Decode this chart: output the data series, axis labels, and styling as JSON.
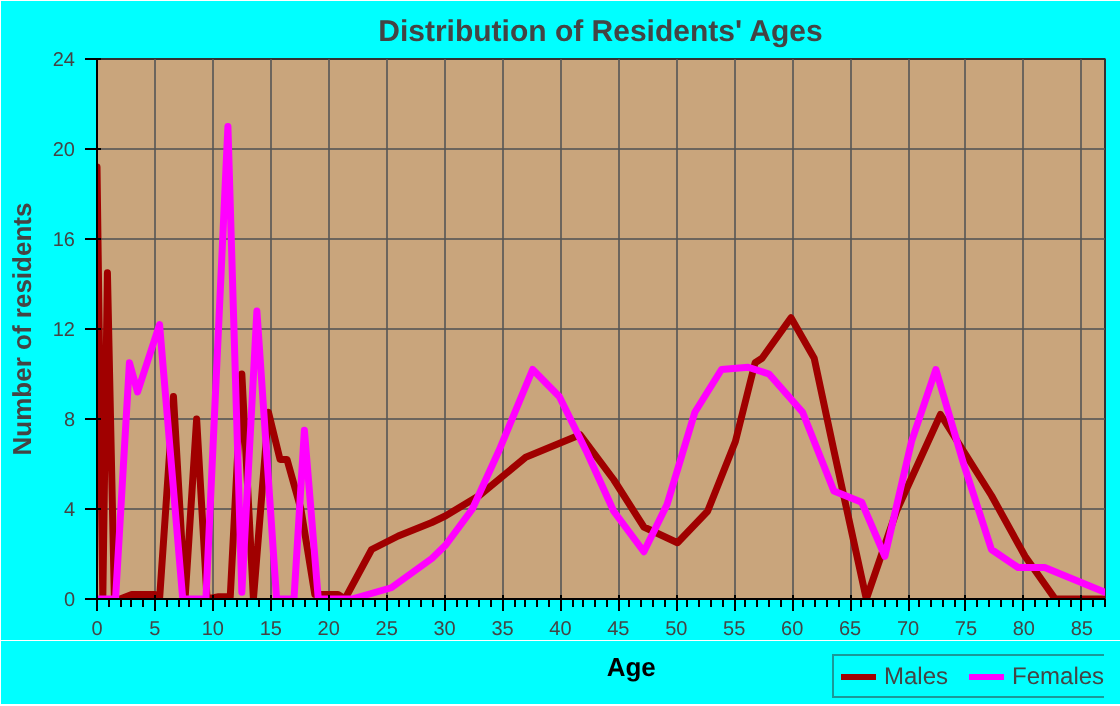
{
  "chart_data": {
    "type": "line",
    "title": "Distribution of Residents' Ages",
    "xlabel": "Age",
    "ylabel": "Number of residents",
    "xlim": [
      0,
      87
    ],
    "ylim": [
      0,
      24
    ],
    "xticks": [
      0,
      5,
      10,
      15,
      20,
      25,
      30,
      35,
      40,
      45,
      50,
      55,
      60,
      65,
      70,
      75,
      80,
      85
    ],
    "yticks": [
      0,
      4,
      8,
      12,
      16,
      20,
      24
    ],
    "grid": true,
    "legend": "bottom right",
    "marker": "none",
    "line_style": "solid",
    "series": [
      {
        "name": "Males",
        "color": "#a00000",
        "x": [
          0,
          0.5,
          0.9,
          1.5,
          2,
          3,
          5,
          5.4,
          6.6,
          7.6,
          8.6,
          9.5,
          10.5,
          11.5,
          12.5,
          13.5,
          14.8,
          15.8,
          16.4,
          17.6,
          18.8,
          20.8,
          21.4,
          23.7,
          26,
          28.9,
          30.1,
          33,
          37,
          41.7,
          44.6,
          47.2,
          50.1,
          52.7,
          55.1,
          56.8,
          57.4,
          59.9,
          61.9,
          63.6,
          66.4,
          69,
          72.8,
          77.2,
          80.1,
          82.7,
          87
        ],
        "values": [
          19.2,
          0,
          14.5,
          0,
          0,
          0.2,
          0.2,
          0,
          9,
          0,
          8,
          0,
          0.1,
          0.1,
          10,
          0,
          8.3,
          6.2,
          6.2,
          4,
          0.2,
          0.2,
          0,
          2.2,
          2.8,
          3.4,
          3.7,
          4.6,
          6.3,
          7.3,
          5.3,
          3.2,
          2.5,
          3.9,
          7,
          10.5,
          10.7,
          12.5,
          10.7,
          6.6,
          0,
          3.9,
          8.2,
          4.6,
          1.9,
          0,
          0
        ]
      },
      {
        "name": "Females",
        "color": "#ff00ff",
        "x": [
          0,
          1.6,
          2.8,
          3.5,
          5.4,
          7.4,
          9.4,
          11.3,
          12.5,
          13.8,
          15.5,
          17,
          17.9,
          19.1,
          22,
          25.4,
          28.9,
          30.1,
          32.4,
          34.7,
          37.6,
          39.9,
          42.3,
          44.6,
          47.2,
          49.2,
          51.6,
          53.9,
          56.2,
          58,
          60.9,
          63.6,
          66,
          68,
          70.3,
          72.4,
          74.8,
          77.2,
          79.5,
          81.8,
          87
        ],
        "values": [
          0,
          0,
          10.5,
          9.2,
          12.2,
          0,
          0,
          21,
          0.3,
          12.8,
          0,
          0,
          7.5,
          0,
          0,
          0.5,
          1.8,
          2.4,
          4,
          6.6,
          10.2,
          9,
          6.5,
          3.9,
          2.1,
          4.2,
          8.3,
          10.2,
          10.3,
          10,
          8.3,
          4.8,
          4.3,
          1.9,
          7,
          10.2,
          6,
          2.2,
          1.4,
          1.4,
          0.3
        ]
      }
    ]
  }
}
